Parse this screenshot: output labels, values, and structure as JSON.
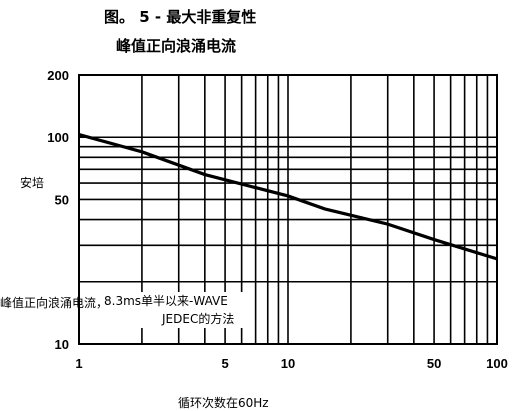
{
  "title": {
    "line1": "图。 5 - 最大非重复性",
    "line2": "峰值正向浪涌电流"
  },
  "annotation": {
    "prefix": "峰值正向浪涌电流，",
    "text_line1": "8.3ms单半以来-WAVE",
    "text_line2": "JEDEC的方法"
  },
  "chart_data": {
    "type": "line",
    "title": "图。 5 - 最大非重复性 峰值正向浪涌电流",
    "xlabel": "循环次数在60Hz",
    "ylabel": "安培",
    "xscale": "log",
    "yscale": "log",
    "xlim": [
      1,
      100
    ],
    "ylim": [
      10,
      200
    ],
    "xticks": [
      1,
      5,
      10,
      50,
      100
    ],
    "xtick_labels": [
      "1",
      "5",
      "10",
      "50",
      "100"
    ],
    "yticks": [
      200,
      100,
      50,
      10
    ],
    "ytick_labels": [
      "200",
      "100",
      "50",
      "10"
    ],
    "grid": true,
    "series": [
      {
        "x": [
          1,
          2,
          4,
          10,
          15,
          30,
          50,
          100
        ],
        "y": [
          103,
          85,
          66,
          52,
          45,
          38,
          32,
          25.8
        ]
      }
    ]
  }
}
